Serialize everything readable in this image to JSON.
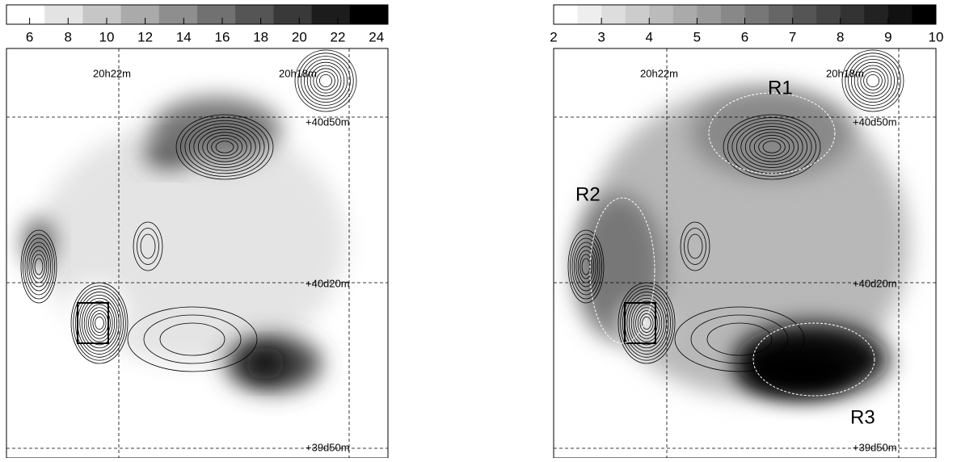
{
  "panels": [
    {
      "colorbar": {
        "lim": [
          4.8,
          24.6
        ],
        "ticks": [
          6,
          8,
          10,
          12,
          14,
          16,
          18,
          20,
          22,
          24
        ]
      },
      "coordinate_labels": [
        "20h22m",
        "20h18m",
        "+40d50m",
        "+40d20m",
        "+39d50m"
      ]
    },
    {
      "colorbar": {
        "lim": [
          2,
          10
        ],
        "ticks": [
          2,
          3,
          4,
          5,
          6,
          7,
          8,
          9,
          10
        ]
      },
      "coordinate_labels": [
        "20h22m",
        "20h18m",
        "+40d50m",
        "+40d20m",
        "+39d50m"
      ],
      "region_labels": [
        "R1",
        "R2",
        "R3"
      ]
    }
  ]
}
